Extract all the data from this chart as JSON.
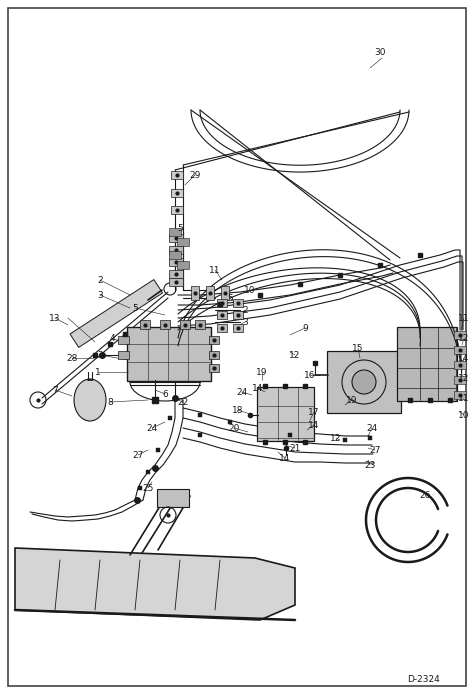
{
  "bg_color": "#ffffff",
  "border_color": "#333333",
  "line_color": "#1a1a1a",
  "fig_width": 4.74,
  "fig_height": 6.94,
  "dpi": 100,
  "diagram_label": "D-2324",
  "ax_bg": "#f0f0f0"
}
